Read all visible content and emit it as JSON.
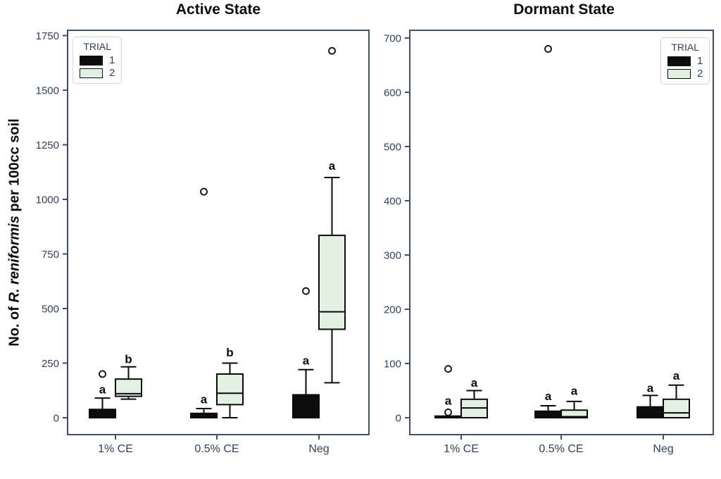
{
  "figure": {
    "y_axis_label": {
      "prefix": "No. of ",
      "italic": "R. reniformis",
      "suffix": " per 100cc soil"
    },
    "stray_mark": ":"
  },
  "style": {
    "background": "#ffffff",
    "axis_color": "#3f4e63",
    "tick_text_color": "#32425a",
    "box_stroke": "#0a0a0a",
    "annotation_color": "#0a0a0a",
    "trial1_color": "#0d0d0d",
    "trial2_color": "#e3f1e3"
  },
  "chart_data": [
    {
      "type": "boxplot",
      "title": "Active State",
      "categories": [
        "1% CE",
        "0.5% CE",
        "Neg"
      ],
      "ylim": [
        0,
        1750
      ],
      "yticks": [
        0,
        250,
        500,
        750,
        1000,
        1250,
        1500,
        1750
      ],
      "ylabel": "No. of R. reniformis per 100cc soil",
      "grid": false,
      "legend": {
        "title": "TRIAL",
        "position": "top-left",
        "entries": [
          {
            "label": "1",
            "color": "#0d0d0d"
          },
          {
            "label": "2",
            "color": "#e3f1e3"
          }
        ]
      },
      "series": [
        {
          "name": "1",
          "color": "#0d0d0d",
          "boxes": [
            {
              "category": "1% CE",
              "low": 0,
              "q1": 0,
              "median": 5,
              "q3": 38,
              "high": 90,
              "outliers": [
                200
              ],
              "letter": "a",
              "letter_value": 130
            },
            {
              "category": "0.5% CE",
              "low": 0,
              "q1": 0,
              "median": 4,
              "q3": 20,
              "high": 42,
              "outliers": [
                1035
              ],
              "letter": "a",
              "letter_value": 85
            },
            {
              "category": "Neg",
              "low": 0,
              "q1": 0,
              "median": 8,
              "q3": 105,
              "high": 220,
              "outliers": [
                580
              ],
              "letter": "a",
              "letter_value": 262
            }
          ]
        },
        {
          "name": "2",
          "color": "#e3f1e3",
          "boxes": [
            {
              "category": "1% CE",
              "low": 85,
              "q1": 98,
              "median": 110,
              "q3": 177,
              "high": 233,
              "outliers": [],
              "letter": "b",
              "letter_value": 270
            },
            {
              "category": "0.5% CE",
              "low": 0,
              "q1": 60,
              "median": 112,
              "q3": 200,
              "high": 250,
              "outliers": [],
              "letter": "b",
              "letter_value": 300
            },
            {
              "category": "Neg",
              "low": 160,
              "q1": 405,
              "median": 485,
              "q3": 835,
              "high": 1100,
              "outliers": [
                1680
              ],
              "letter": "a",
              "letter_value": 1155
            }
          ]
        }
      ]
    },
    {
      "type": "boxplot",
      "title": "Dormant State",
      "categories": [
        "1% CE",
        "0.5% CE",
        "Neg"
      ],
      "ylim": [
        0,
        700
      ],
      "yticks": [
        0,
        100,
        200,
        300,
        400,
        500,
        600,
        700
      ],
      "ylabel": "",
      "grid": false,
      "legend": {
        "title": "TRIAL",
        "position": "top-right",
        "entries": [
          {
            "label": "1",
            "color": "#0d0d0d"
          },
          {
            "label": "2",
            "color": "#e3f1e3"
          }
        ]
      },
      "series": [
        {
          "name": "1",
          "color": "#0d0d0d",
          "boxes": [
            {
              "category": "1% CE",
              "low": 0,
              "q1": 0,
              "median": 1,
              "q3": 3,
              "high": 3,
              "outliers": [
                10,
                90
              ],
              "letter": "a",
              "letter_value": 32
            },
            {
              "category": "0.5% CE",
              "low": 0,
              "q1": 0,
              "median": 3,
              "q3": 12,
              "high": 22,
              "outliers": [
                680
              ],
              "letter": "a",
              "letter_value": 40
            },
            {
              "category": "Neg",
              "low": 0,
              "q1": 0,
              "median": 5,
              "q3": 20,
              "high": 41,
              "outliers": [],
              "letter": "a",
              "letter_value": 55
            }
          ]
        },
        {
          "name": "2",
          "color": "#e3f1e3",
          "boxes": [
            {
              "category": "1% CE",
              "low": 0,
              "q1": 0,
              "median": 18,
              "q3": 34,
              "high": 50,
              "outliers": [],
              "letter": "a",
              "letter_value": 65
            },
            {
              "category": "0.5% CE",
              "low": 0,
              "q1": 0,
              "median": 2,
              "q3": 14,
              "high": 30,
              "outliers": [],
              "letter": "a",
              "letter_value": 50
            },
            {
              "category": "Neg",
              "low": 0,
              "q1": 0,
              "median": 9,
              "q3": 34,
              "high": 60,
              "outliers": [],
              "letter": "a",
              "letter_value": 78
            }
          ]
        }
      ]
    }
  ]
}
